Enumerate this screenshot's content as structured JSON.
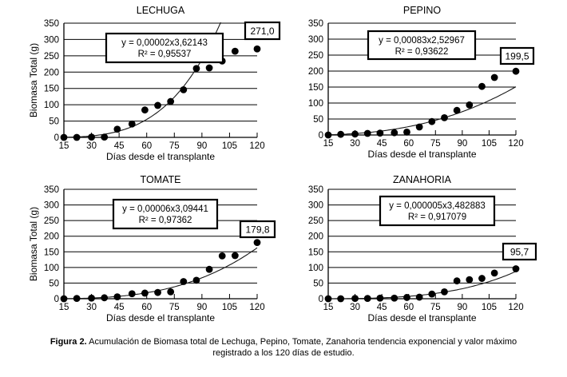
{
  "figure": {
    "caption_bold": "Figura 2.",
    "caption_text": " Acumulación de Biomasa total de Lechuga, Pepino, Tomate, Zanahoria tendencia exponencial y valor máximo registrado a los 120 días de estudio."
  },
  "chart_data": [
    {
      "type": "scatter",
      "title": "LECHUGA",
      "xlabel": "Días desde el transplante",
      "ylabel": "Biomasa Total (g)",
      "xlim": [
        15,
        120
      ],
      "ylim": [
        0,
        350
      ],
      "xticks": [
        15,
        30,
        45,
        60,
        75,
        90,
        105,
        120
      ],
      "yticks": [
        0,
        50,
        100,
        150,
        200,
        250,
        300,
        350
      ],
      "grid": true,
      "x": [
        15,
        22,
        30,
        37,
        44,
        52,
        59,
        66,
        73,
        80,
        87,
        94,
        101,
        108,
        120
      ],
      "y": [
        0,
        0,
        1,
        1,
        25,
        41,
        84,
        98,
        110,
        146,
        211,
        213,
        234,
        264,
        271
      ],
      "trend": {
        "type": "power",
        "a": 2e-05,
        "b": 3.62143
      },
      "equation": "y = 0,00002x3,62143",
      "r_squared": "R² = 0,95537",
      "max_label": "271,0",
      "point_color": "#000000",
      "line_color": "#1a1a1a"
    },
    {
      "type": "scatter",
      "title": "PEPINO",
      "xlabel": "Días desde el transplante",
      "ylabel": "",
      "xlim": [
        15,
        120
      ],
      "ylim": [
        0,
        350
      ],
      "xticks": [
        15,
        30,
        45,
        60,
        75,
        90,
        105,
        120
      ],
      "yticks": [
        0,
        50,
        100,
        150,
        200,
        250,
        300,
        350
      ],
      "grid": true,
      "x": [
        15,
        22,
        30,
        37,
        44,
        52,
        59,
        66,
        73,
        80,
        87,
        94,
        101,
        108,
        120
      ],
      "y": [
        0,
        2,
        3,
        5,
        6,
        7,
        9,
        25,
        42,
        54,
        77,
        94,
        152,
        180,
        199.5
      ],
      "trend": {
        "type": "power",
        "a": 0.00083,
        "b": 2.52967
      },
      "equation": "y = 0,00083x2,52967",
      "r_squared": "R² = 0,93622",
      "max_label": "199,5",
      "point_color": "#000000",
      "line_color": "#1a1a1a"
    },
    {
      "type": "scatter",
      "title": "TOMATE",
      "xlabel": "Días desde el transplante",
      "ylabel": "Biomasa Total (g)",
      "xlim": [
        15,
        120
      ],
      "ylim": [
        0,
        350
      ],
      "xticks": [
        15,
        30,
        45,
        60,
        75,
        90,
        105,
        120
      ],
      "yticks": [
        0,
        50,
        100,
        150,
        200,
        250,
        300,
        350
      ],
      "grid": true,
      "x": [
        15,
        22,
        30,
        37,
        44,
        52,
        59,
        66,
        73,
        80,
        87,
        94,
        101,
        108,
        120
      ],
      "y": [
        0,
        1,
        2,
        3,
        6,
        16,
        18,
        20,
        22,
        55,
        59,
        94,
        137,
        138,
        179.8
      ],
      "trend": {
        "type": "power",
        "a": 6e-05,
        "b": 3.09441
      },
      "equation": "y = 0,00006x3,09441",
      "r_squared": "R² = 0,97362",
      "max_label": "179,8",
      "point_color": "#000000",
      "line_color": "#1a1a1a"
    },
    {
      "type": "scatter",
      "title": "ZANAHORIA",
      "xlabel": "Días desde el transplante",
      "ylabel": "",
      "xlim": [
        15,
        120
      ],
      "ylim": [
        0,
        350
      ],
      "xticks": [
        15,
        30,
        45,
        60,
        75,
        90,
        105,
        120
      ],
      "yticks": [
        0,
        50,
        100,
        150,
        200,
        250,
        300,
        350
      ],
      "grid": true,
      "x": [
        15,
        22,
        30,
        37,
        44,
        52,
        59,
        66,
        73,
        80,
        87,
        94,
        101,
        108,
        120
      ],
      "y": [
        0,
        0,
        1,
        1,
        2,
        2,
        4,
        5,
        15,
        22,
        57,
        61,
        65,
        82,
        95.7
      ],
      "trend": {
        "type": "power",
        "a": 5e-06,
        "b": 3.482883
      },
      "equation": "y = 0,000005x3,482883",
      "r_squared": "R² = 0,917079",
      "max_label": "95,7",
      "point_color": "#000000",
      "line_color": "#1a1a1a"
    }
  ]
}
